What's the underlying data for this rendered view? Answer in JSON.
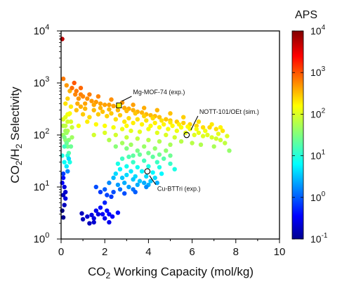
{
  "chart_data": {
    "type": "scatter",
    "xlabel": {
      "prefix": "CO",
      "sub": "2",
      "suffix": " Working Capacity (mol/kg)"
    },
    "ylabel": {
      "p1": "CO",
      "s1": "2",
      "p2": "/H",
      "s2": "2",
      "p3": " Selectivity"
    },
    "xlim": [
      0,
      10
    ],
    "ylim": [
      1,
      10000
    ],
    "yscale": "log",
    "xticks": [
      "0",
      "2",
      "4",
      "6",
      "8",
      "10"
    ],
    "yticks": [
      {
        "base": "10",
        "exp": "0"
      },
      {
        "base": "10",
        "exp": "1"
      },
      {
        "base": "10",
        "exp": "2"
      },
      {
        "base": "10",
        "exp": "3"
      },
      {
        "base": "10",
        "exp": "4"
      }
    ],
    "grid": false,
    "colorbar": {
      "title": "APS",
      "scale": "log",
      "range": [
        0.1,
        10000
      ],
      "colormap": "jet",
      "ticks": [
        {
          "base": "10",
          "exp": "4"
        },
        {
          "base": "10",
          "exp": "3"
        },
        {
          "base": "10",
          "exp": "2"
        },
        {
          "base": "10",
          "exp": "1"
        },
        {
          "base": "10",
          "exp": "0"
        },
        {
          "base": "10",
          "exp": "-1"
        }
      ]
    },
    "annotations": [
      {
        "text": "Mg-MOF-74 (exp.)",
        "x": 2.65,
        "y": 370,
        "marker": "square"
      },
      {
        "text": "NOTT-101/OEt (sim.)",
        "x": 5.75,
        "y": 100,
        "marker": "circle"
      },
      {
        "text": "Cu-BTTri (exp.)",
        "x": 3.95,
        "y": 20,
        "marker": "circle"
      }
    ],
    "points": [
      [
        0.05,
        7000,
        5000
      ],
      [
        0.05,
        3.5,
        0.1
      ],
      [
        0.1,
        2.6,
        0.12
      ],
      [
        0.05,
        12,
        0.4
      ],
      [
        0.1,
        18,
        0.8
      ],
      [
        0.2,
        6,
        0.3
      ],
      [
        0.15,
        4.5,
        0.2
      ],
      [
        0.3,
        60,
        30
      ],
      [
        0.2,
        80,
        40
      ],
      [
        0.1,
        100,
        45
      ],
      [
        0.3,
        120,
        60
      ],
      [
        0.2,
        150,
        70
      ],
      [
        0.1,
        200,
        90
      ],
      [
        0.3,
        250,
        110
      ],
      [
        0.2,
        400,
        180
      ],
      [
        0.3,
        500,
        220
      ],
      [
        0.4,
        700,
        320
      ],
      [
        0.25,
        900,
        420
      ],
      [
        0.1,
        1200,
        600
      ],
      [
        0.45,
        350,
        170
      ],
      [
        0.35,
        45,
        20
      ],
      [
        0.15,
        30,
        8
      ],
      [
        0.25,
        25,
        6
      ],
      [
        0.05,
        40,
        10
      ],
      [
        0.35,
        250,
        120
      ],
      [
        0.5,
        90,
        45
      ],
      [
        0.45,
        180,
        90
      ],
      [
        0.15,
        60,
        15
      ],
      [
        0.3,
        40,
        12
      ],
      [
        0.2,
        120,
        50
      ],
      [
        0.4,
        30,
        10
      ],
      [
        0.35,
        80,
        35
      ],
      [
        0.25,
        110,
        45
      ],
      [
        0.1,
        150,
        60
      ],
      [
        0.3,
        180,
        80
      ],
      [
        0.2,
        220,
        100
      ],
      [
        0.4,
        260,
        130
      ],
      [
        0.5,
        140,
        70
      ],
      [
        0.15,
        90,
        30
      ],
      [
        0.45,
        60,
        25
      ],
      [
        0.25,
        70,
        25
      ],
      [
        0.6,
        1000,
        900
      ],
      [
        0.5,
        800,
        700
      ],
      [
        0.7,
        700,
        600
      ],
      [
        0.65,
        600,
        520
      ],
      [
        0.9,
        600,
        560
      ],
      [
        1.0,
        550,
        520
      ],
      [
        0.8,
        500,
        440
      ],
      [
        1.2,
        500,
        480
      ],
      [
        1.4,
        450,
        430
      ],
      [
        1.6,
        430,
        420
      ],
      [
        1.1,
        400,
        370
      ],
      [
        1.8,
        400,
        390
      ],
      [
        2.0,
        380,
        380
      ],
      [
        2.2,
        380,
        390
      ],
      [
        2.4,
        360,
        380
      ],
      [
        2.6,
        350,
        370
      ],
      [
        2.9,
        330,
        360
      ],
      [
        3.1,
        320,
        350
      ],
      [
        3.3,
        300,
        330
      ],
      [
        3.5,
        280,
        320
      ],
      [
        3.7,
        270,
        310
      ],
      [
        3.9,
        250,
        300
      ],
      [
        4.1,
        240,
        290
      ],
      [
        4.3,
        230,
        280
      ],
      [
        4.5,
        220,
        270
      ],
      [
        4.8,
        200,
        260
      ],
      [
        5.0,
        190,
        250
      ],
      [
        5.3,
        180,
        240
      ],
      [
        5.6,
        170,
        230
      ],
      [
        5.9,
        160,
        220
      ],
      [
        6.2,
        150,
        210
      ],
      [
        6.5,
        140,
        200
      ],
      [
        6.8,
        140,
        205
      ],
      [
        7.1,
        130,
        195
      ],
      [
        7.4,
        120,
        180
      ],
      [
        1.0,
        250,
        240
      ],
      [
        1.3,
        220,
        200
      ],
      [
        1.5,
        300,
        290
      ],
      [
        1.7,
        250,
        240
      ],
      [
        1.9,
        280,
        270
      ],
      [
        2.1,
        230,
        220
      ],
      [
        2.3,
        260,
        250
      ],
      [
        2.5,
        200,
        190
      ],
      [
        2.7,
        240,
        240
      ],
      [
        2.9,
        180,
        170
      ],
      [
        3.1,
        210,
        200
      ],
      [
        3.3,
        170,
        160
      ],
      [
        3.5,
        200,
        190
      ],
      [
        3.7,
        160,
        150
      ],
      [
        3.9,
        190,
        180
      ],
      [
        4.1,
        150,
        140
      ],
      [
        4.3,
        170,
        160
      ],
      [
        4.5,
        140,
        130
      ],
      [
        4.7,
        160,
        150
      ],
      [
        4.9,
        130,
        120
      ],
      [
        5.1,
        150,
        140
      ],
      [
        5.3,
        120,
        110
      ],
      [
        5.5,
        140,
        130
      ],
      [
        5.7,
        110,
        100
      ],
      [
        5.9,
        130,
        120
      ],
      [
        6.1,
        100,
        95
      ],
      [
        6.3,
        110,
        105
      ],
      [
        6.5,
        95,
        90
      ],
      [
        6.7,
        100,
        95
      ],
      [
        6.9,
        90,
        85
      ],
      [
        7.1,
        85,
        80
      ],
      [
        7.3,
        80,
        75
      ],
      [
        7.5,
        70,
        65
      ],
      [
        7.7,
        50,
        40
      ],
      [
        6.0,
        70,
        60
      ],
      [
        5.5,
        75,
        60
      ],
      [
        6.4,
        65,
        55
      ],
      [
        7.0,
        60,
        50
      ],
      [
        5.2,
        90,
        80
      ],
      [
        4.8,
        100,
        90
      ],
      [
        4.4,
        110,
        95
      ],
      [
        0.8,
        150,
        120
      ],
      [
        1.2,
        180,
        160
      ],
      [
        1.6,
        160,
        140
      ],
      [
        2.0,
        150,
        130
      ],
      [
        2.4,
        140,
        120
      ],
      [
        2.8,
        130,
        110
      ],
      [
        3.2,
        120,
        100
      ],
      [
        3.6,
        115,
        100
      ],
      [
        0.7,
        300,
        270
      ],
      [
        0.9,
        350,
        330
      ],
      [
        1.1,
        320,
        300
      ],
      [
        1.5,
        380,
        360
      ],
      [
        1.8,
        330,
        320
      ],
      [
        2.2,
        310,
        300
      ],
      [
        2.6,
        300,
        295
      ],
      [
        3.0,
        290,
        285
      ],
      [
        3.4,
        260,
        255
      ],
      [
        3.8,
        230,
        225
      ],
      [
        4.2,
        210,
        205
      ],
      [
        4.6,
        190,
        185
      ],
      [
        5.0,
        175,
        170
      ],
      [
        5.4,
        160,
        155
      ],
      [
        5.8,
        145,
        140
      ],
      [
        6.2,
        130,
        125
      ],
      [
        6.6,
        120,
        115
      ],
      [
        7.2,
        105,
        100
      ],
      [
        7.6,
        95,
        90
      ],
      [
        0.9,
        800,
        750
      ],
      [
        0.75,
        400,
        340
      ],
      [
        1.3,
        600,
        580
      ],
      [
        1.7,
        550,
        540
      ],
      [
        2.3,
        480,
        480
      ],
      [
        2.8,
        420,
        430
      ],
      [
        3.3,
        380,
        390
      ],
      [
        3.8,
        330,
        340
      ],
      [
        4.4,
        300,
        310
      ],
      [
        5.0,
        260,
        270
      ],
      [
        5.6,
        220,
        230
      ],
      [
        6.3,
        180,
        190
      ],
      [
        6.9,
        160,
        170
      ],
      [
        7.3,
        140,
        150
      ],
      [
        3.0,
        150,
        135
      ],
      [
        4.0,
        130,
        115
      ],
      [
        2.0,
        110,
        90
      ],
      [
        2.5,
        100,
        80
      ],
      [
        3.0,
        90,
        70
      ],
      [
        3.5,
        85,
        65
      ],
      [
        4.0,
        80,
        60
      ],
      [
        4.5,
        75,
        55
      ],
      [
        5.0,
        65,
        50
      ],
      [
        1.5,
        100,
        80
      ],
      [
        2.2,
        80,
        55
      ],
      [
        2.8,
        70,
        48
      ],
      [
        3.2,
        65,
        45
      ],
      [
        3.8,
        60,
        42
      ],
      [
        4.3,
        55,
        40
      ],
      [
        4.8,
        50,
        38
      ],
      [
        2.5,
        60,
        35
      ],
      [
        3.0,
        55,
        32
      ],
      [
        3.5,
        50,
        30
      ],
      [
        4.0,
        45,
        28
      ],
      [
        4.5,
        42,
        27
      ],
      [
        5.0,
        40,
        26
      ],
      [
        3.3,
        40,
        22
      ],
      [
        3.1,
        38,
        18
      ],
      [
        3.6,
        42,
        24
      ],
      [
        4.2,
        38,
        22
      ],
      [
        4.7,
        35,
        20
      ],
      [
        2.8,
        35,
        15
      ],
      [
        3.3,
        30,
        14
      ],
      [
        3.8,
        32,
        16
      ],
      [
        4.4,
        30,
        15
      ],
      [
        5.0,
        28,
        14
      ],
      [
        2.6,
        28,
        10
      ],
      [
        3.0,
        25,
        9
      ],
      [
        3.5,
        24,
        9
      ],
      [
        4.0,
        25,
        10
      ],
      [
        4.5,
        24,
        10
      ],
      [
        5.2,
        22,
        10
      ],
      [
        2.7,
        22,
        7
      ],
      [
        3.2,
        20,
        6
      ],
      [
        3.7,
        20,
        7
      ],
      [
        4.2,
        19,
        7
      ],
      [
        4.6,
        18,
        7
      ],
      [
        2.5,
        18,
        5
      ],
      [
        3.0,
        17,
        5
      ],
      [
        3.4,
        16,
        5
      ],
      [
        3.9,
        16,
        5
      ],
      [
        4.3,
        15,
        5
      ],
      [
        2.8,
        15,
        4
      ],
      [
        3.3,
        14,
        4
      ],
      [
        3.6,
        13,
        4
      ],
      [
        4.1,
        13,
        4
      ],
      [
        2.4,
        15,
        3.5
      ],
      [
        2.9,
        12,
        3
      ],
      [
        3.5,
        11,
        3
      ],
      [
        4.0,
        11,
        3
      ],
      [
        2.6,
        11,
        2.5
      ],
      [
        3.1,
        10,
        2.5
      ],
      [
        3.8,
        12,
        3
      ],
      [
        2.2,
        12,
        2
      ],
      [
        2.7,
        9,
        1.5
      ],
      [
        3.3,
        9,
        1.6
      ],
      [
        3.9,
        10,
        2
      ],
      [
        4.4,
        12,
        3
      ],
      [
        2.0,
        9,
        1.2
      ],
      [
        2.4,
        8,
        1
      ],
      [
        2.9,
        7.5,
        1
      ],
      [
        3.4,
        8,
        1.2
      ],
      [
        2.1,
        7,
        0.9
      ],
      [
        1.8,
        8,
        0.8
      ],
      [
        1.6,
        10,
        1
      ],
      [
        2.3,
        6.5,
        0.8
      ],
      [
        2.0,
        5,
        0.6
      ],
      [
        1.8,
        4,
        0.5
      ],
      [
        2.1,
        3.5,
        0.45
      ],
      [
        2.2,
        3.0,
        0.45
      ],
      [
        1.9,
        3,
        0.4
      ],
      [
        1.6,
        3.5,
        0.35
      ],
      [
        1.7,
        3,
        0.3
      ],
      [
        1.5,
        2.5,
        0.3
      ],
      [
        1.2,
        2.7,
        0.25
      ],
      [
        1.3,
        2.0,
        0.2
      ],
      [
        1.5,
        2.1,
        0.25
      ],
      [
        2.2,
        2.1,
        0.35
      ],
      [
        1.0,
        2.4,
        0.2
      ],
      [
        0.95,
        3.1,
        0.2
      ],
      [
        2.35,
        2.7,
        0.4
      ],
      [
        2.6,
        3.2,
        0.5
      ],
      [
        1.4,
        2.9,
        0.3
      ],
      [
        2.0,
        2.5,
        0.35
      ],
      [
        0.1,
        15,
        0.5
      ],
      [
        0.15,
        10,
        0.3
      ],
      [
        0.2,
        8,
        0.25
      ],
      [
        0.1,
        7,
        0.2
      ],
      [
        0.3,
        20,
        2
      ],
      [
        0.35,
        35,
        5
      ]
    ]
  }
}
